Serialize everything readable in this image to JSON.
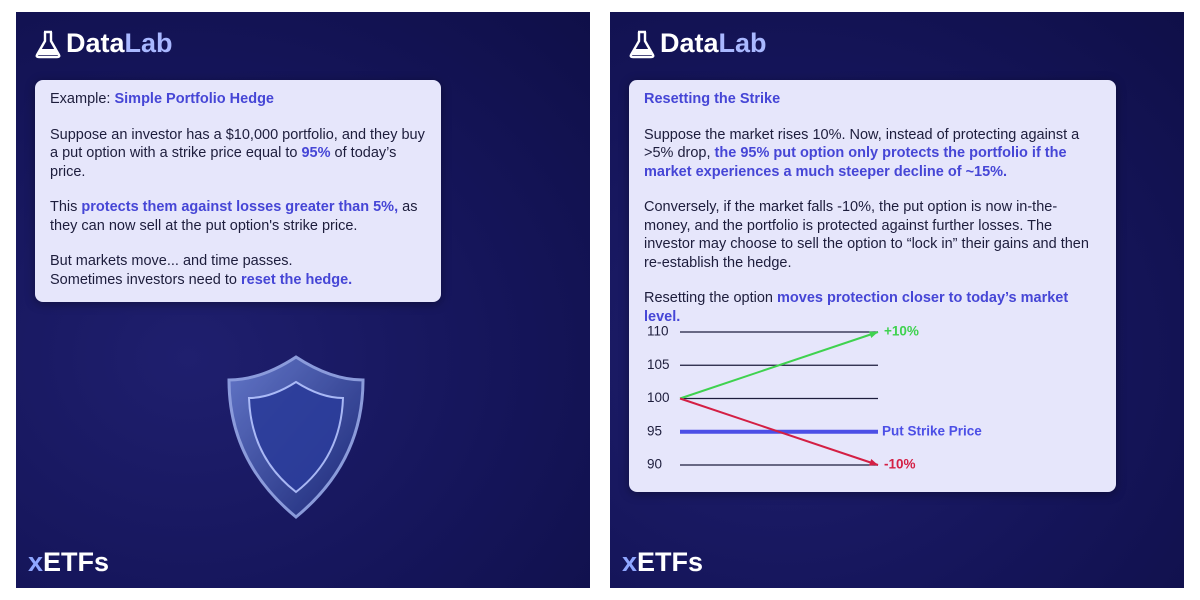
{
  "left": {
    "logo": {
      "a": "Data",
      "b": "Lab"
    },
    "card": {
      "paragraphs": [
        [
          [
            {
              "text": "Example: ",
              "em": false
            },
            {
              "text": "Simple Portfolio Hedge",
              "em": true
            }
          ]
        ],
        [
          [
            {
              "text": "Suppose an investor has a $10,000 portfolio, and they buy a put option with a strike price equal to ",
              "em": false
            },
            {
              "text": "95%",
              "em": true
            },
            {
              "text": " of today’s price.",
              "em": false
            }
          ]
        ],
        [
          [
            {
              "text": "This ",
              "em": false
            },
            {
              "text": "protects them against losses greater than 5%,",
              "em": true
            },
            {
              "text": " as they can now sell at the put option's strike price.",
              "em": false
            }
          ]
        ],
        [
          [
            {
              "text": "But markets move... and time passes.",
              "em": false
            }
          ],
          [
            {
              "text": "Sometimes investors need to ",
              "em": false
            },
            {
              "text": "reset the hedge.",
              "em": true
            }
          ]
        ]
      ]
    },
    "footer": {
      "a": "x",
      "b": "ETFs"
    }
  },
  "right": {
    "logo": {
      "a": "Data",
      "b": "Lab"
    },
    "card": {
      "paragraphs": [
        [
          [
            {
              "text": "Resetting the Strike",
              "em": true
            }
          ]
        ],
        [
          [
            {
              "text": "Suppose the market rises 10%. Now, instead of protecting against a >5% drop, ",
              "em": false
            },
            {
              "text": "the 95% put option only protects the portfolio if the market experiences a much steeper decline of ~15%.",
              "em": true
            }
          ]
        ],
        [
          [
            {
              "text": "Conversely, if the market falls -10%, the put option is now in-the-money, and the portfolio is protected against further losses. The investor may choose to sell the option to “lock in” their gains and then re-establish the hedge.",
              "em": false
            }
          ]
        ],
        [
          [
            {
              "text": "Resetting the option ",
              "em": false
            },
            {
              "text": "moves protection closer to today’s market level.",
              "em": true
            }
          ]
        ]
      ]
    },
    "chart": {
      "ylim": [
        90,
        110
      ],
      "yticks": [
        110,
        105,
        100,
        95,
        90
      ],
      "start": 100,
      "series": [
        {
          "name": "+10%",
          "value": 110,
          "color": "#3fd24f"
        },
        {
          "name": "-10%",
          "value": 90,
          "color": "#d41f44"
        }
      ],
      "strike": {
        "name": "Put Strike Price",
        "value": 95,
        "color": "#4c4fe6"
      }
    },
    "footer": {
      "a": "x",
      "b": "ETFs"
    }
  }
}
